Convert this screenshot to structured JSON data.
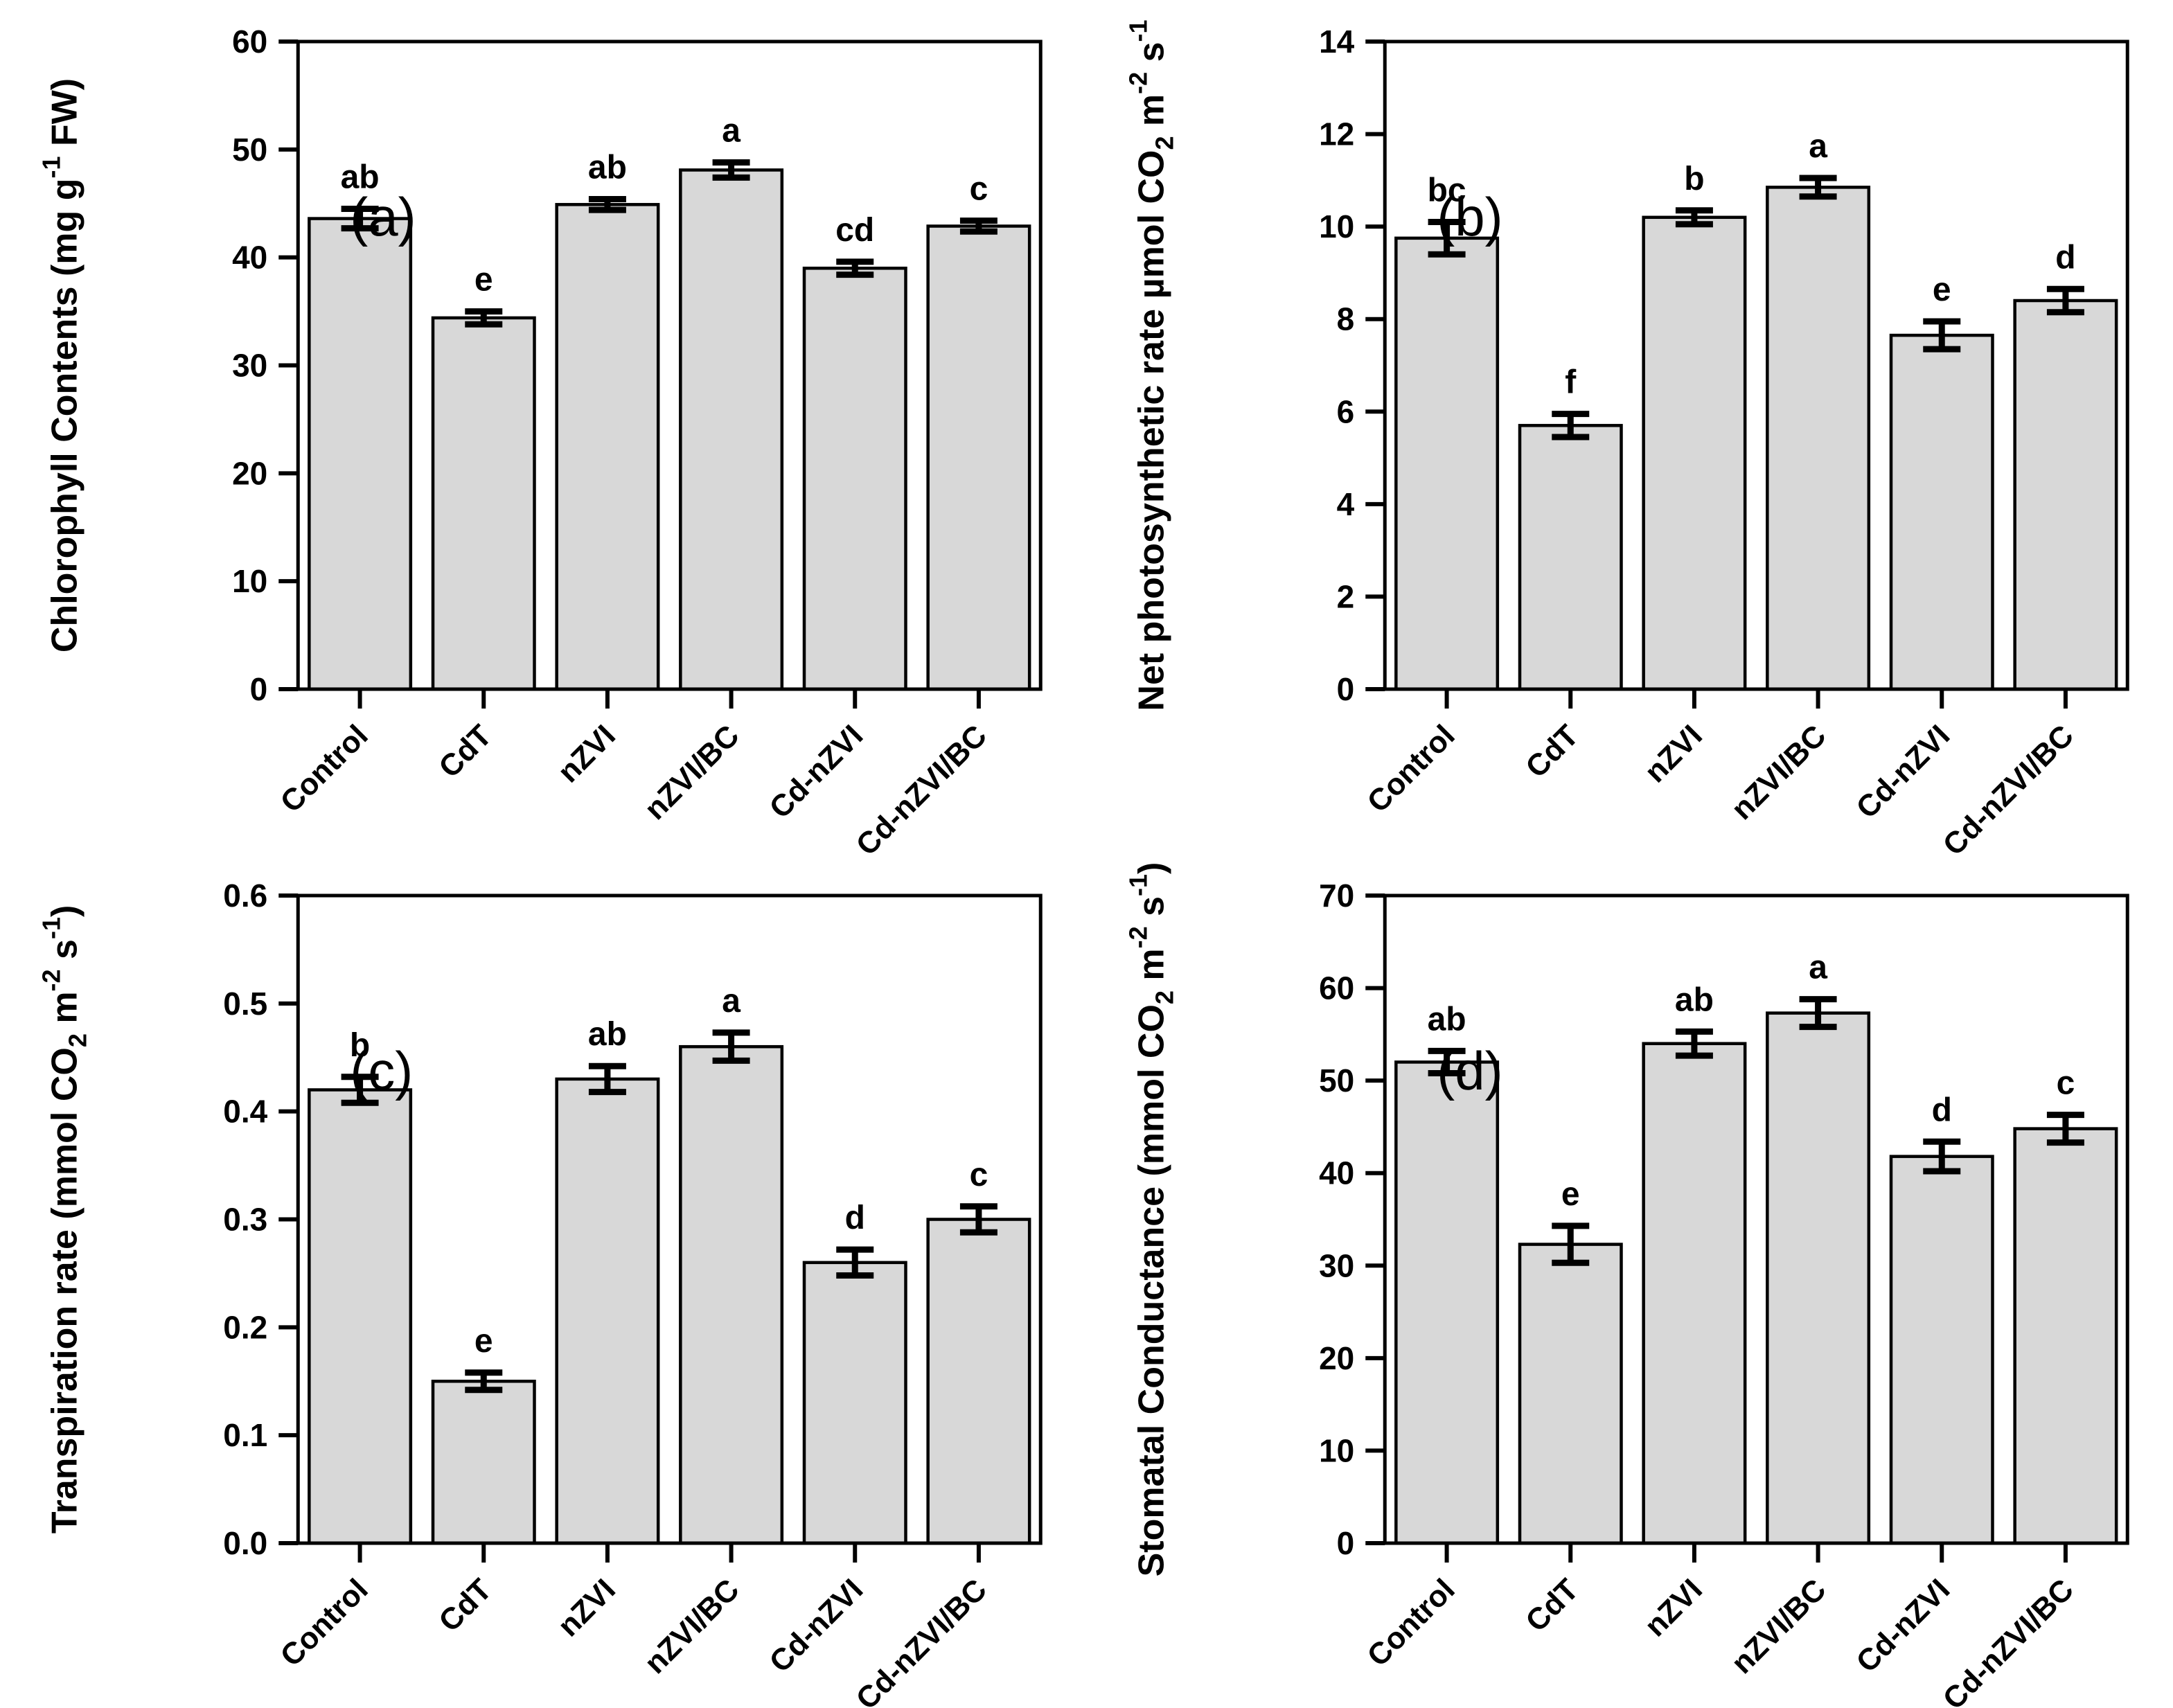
{
  "colors": {
    "background": "#ffffff",
    "bar_fill": "#d8d8d8",
    "bar_stroke": "#000000",
    "axis_color": "#000000"
  },
  "categories": [
    "Control",
    "CdT",
    "nZVI",
    "nZVI/BC",
    "Cd-nZVI",
    "Cd-nZVI/BC"
  ],
  "chart_data": [
    {
      "type": "bar",
      "panel_tag": "(a)",
      "ylabel": "Chlorophyll Contents (mg g-1 FW)",
      "ylabel_parts": [
        {
          "t": "Chlorophyll Contents (mg g",
          "k": "n"
        },
        {
          "t": "-1",
          "k": "sup"
        },
        {
          "t": " FW)",
          "k": "n"
        }
      ],
      "ylim": [
        0,
        60
      ],
      "yticks": [
        {
          "v": 0,
          "label": "0"
        },
        {
          "v": 10,
          "label": "10"
        },
        {
          "v": 20,
          "label": "20"
        },
        {
          "v": 30,
          "label": "30"
        },
        {
          "v": 40,
          "label": "40"
        },
        {
          "v": 50,
          "label": "50"
        },
        {
          "v": 60,
          "label": "60"
        }
      ],
      "categories": [
        "Control",
        "CdT",
        "nZVI",
        "nZVI/BC",
        "Cd-nZVI",
        "Cd-nZVI/BC"
      ],
      "values": [
        43.6,
        34.4,
        44.9,
        48.1,
        39.0,
        42.9
      ],
      "errors": [
        0.9,
        0.6,
        0.5,
        0.7,
        0.6,
        0.5
      ],
      "sig_letters": [
        "ab",
        "e",
        "ab",
        "a",
        "cd",
        "c"
      ],
      "grid": false,
      "legend": false
    },
    {
      "type": "bar",
      "panel_tag": "(b)",
      "ylabel": "Net photosynthetic rate µmol CO2 m-2 s-1",
      "ylabel_parts": [
        {
          "t": "Net photosynthetic rate µmol CO",
          "k": "n"
        },
        {
          "t": "2",
          "k": "sub"
        },
        {
          "t": " m",
          "k": "n"
        },
        {
          "t": "-2",
          "k": "sup"
        },
        {
          "t": " s",
          "k": "n"
        },
        {
          "t": "-1",
          "k": "sup"
        }
      ],
      "ylim": [
        0,
        14
      ],
      "yticks": [
        {
          "v": 0,
          "label": "0"
        },
        {
          "v": 2,
          "label": "2"
        },
        {
          "v": 4,
          "label": "4"
        },
        {
          "v": 6,
          "label": "6"
        },
        {
          "v": 8,
          "label": "8"
        },
        {
          "v": 10,
          "label": "10"
        },
        {
          "v": 12,
          "label": "12"
        },
        {
          "v": 14,
          "label": "14"
        }
      ],
      "categories": [
        "Control",
        "CdT",
        "nZVI",
        "nZVI/BC",
        "Cd-nZVI",
        "Cd-nZVI/BC"
      ],
      "values": [
        9.75,
        5.7,
        10.2,
        10.85,
        7.65,
        8.4
      ],
      "errors": [
        0.35,
        0.25,
        0.15,
        0.2,
        0.3,
        0.25
      ],
      "sig_letters": [
        "bc",
        "f",
        "b",
        "a",
        "e",
        "d"
      ],
      "grid": false,
      "legend": false
    },
    {
      "type": "bar",
      "panel_tag": "(c)",
      "ylabel": "Transpiration rate (mmol CO2 m-2 s-1)",
      "ylabel_parts": [
        {
          "t": "Transpiration rate (mmol CO",
          "k": "n"
        },
        {
          "t": "2",
          "k": "sub"
        },
        {
          "t": " m",
          "k": "n"
        },
        {
          "t": "-2",
          "k": "sup"
        },
        {
          "t": " s",
          "k": "n"
        },
        {
          "t": "-1",
          "k": "sup"
        },
        {
          "t": ")",
          "k": "n"
        }
      ],
      "ylim": [
        0,
        0.6
      ],
      "yticks": [
        {
          "v": 0.0,
          "label": "0.0"
        },
        {
          "v": 0.1,
          "label": "0.1"
        },
        {
          "v": 0.2,
          "label": "0.2"
        },
        {
          "v": 0.3,
          "label": "0.3"
        },
        {
          "v": 0.4,
          "label": "0.4"
        },
        {
          "v": 0.5,
          "label": "0.5"
        },
        {
          "v": 0.6,
          "label": "0.6"
        }
      ],
      "categories": [
        "Control",
        "CdT",
        "nZVI",
        "nZVI/BC",
        "Cd-nZVI",
        "Cd-nZVI/BC"
      ],
      "values": [
        0.42,
        0.15,
        0.43,
        0.46,
        0.26,
        0.3
      ],
      "errors": [
        0.012,
        0.008,
        0.012,
        0.013,
        0.012,
        0.012
      ],
      "sig_letters": [
        "b",
        "e",
        "ab",
        "a",
        "d",
        "c"
      ],
      "grid": false,
      "legend": false
    },
    {
      "type": "bar",
      "panel_tag": "(d)",
      "ylabel": "Stomatal Conductance (mmol CO2 m-2 s-1)",
      "ylabel_parts": [
        {
          "t": "Stomatal Conductance (mmol CO",
          "k": "n"
        },
        {
          "t": "2",
          "k": "sub"
        },
        {
          "t": " m",
          "k": "n"
        },
        {
          "t": "-2",
          "k": "sup"
        },
        {
          "t": " s",
          "k": "n"
        },
        {
          "t": "-1",
          "k": "sup"
        },
        {
          "t": ")",
          "k": "n"
        }
      ],
      "ylim": [
        0,
        70
      ],
      "yticks": [
        {
          "v": 0,
          "label": "0"
        },
        {
          "v": 10,
          "label": "10"
        },
        {
          "v": 20,
          "label": "20"
        },
        {
          "v": 30,
          "label": "30"
        },
        {
          "v": 40,
          "label": "40"
        },
        {
          "v": 50,
          "label": "50"
        },
        {
          "v": 60,
          "label": "60"
        },
        {
          "v": 70,
          "label": "70"
        }
      ],
      "categories": [
        "Control",
        "CdT",
        "nZVI",
        "nZVI/BC",
        "Cd-nZVI",
        "Cd-nZVI/BC"
      ],
      "values": [
        52.0,
        32.3,
        54.0,
        57.3,
        41.8,
        44.8
      ],
      "errors": [
        1.2,
        2.0,
        1.3,
        1.5,
        1.6,
        1.5
      ],
      "sig_letters": [
        "ab",
        "e",
        "ab",
        "a",
        "d",
        "c"
      ],
      "grid": false,
      "legend": false
    }
  ]
}
